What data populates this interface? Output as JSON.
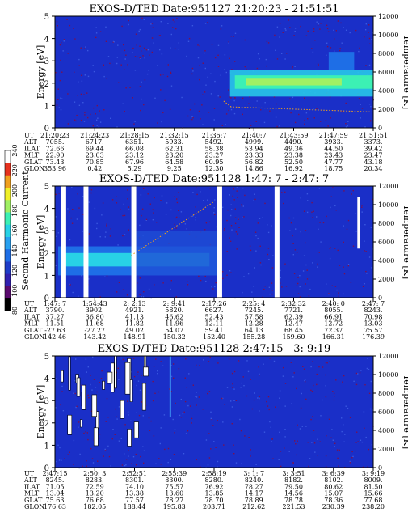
{
  "colorbar": {
    "label": "Second Harmonic Current",
    "ticks": [
      "80",
      "100",
      "120",
      "140",
      "160",
      "180",
      "200",
      "220",
      "240"
    ],
    "colors": [
      "#000000",
      "#5a0a6e",
      "#3020b0",
      "#1e3cc8",
      "#1e6ee6",
      "#28a0f0",
      "#28d2e6",
      "#3cf0b4",
      "#a0f064",
      "#f0f028",
      "#f0a01e",
      "#e6321e",
      "#ffffff"
    ]
  },
  "chart_data": [
    {
      "type": "heatmap",
      "title": "EXOS-D/TED   Date:951127  21:20:23 - 21:51:51",
      "ylabel": "Energy [eV]",
      "y2label": "Temperature [K]",
      "yticks": [
        "0",
        "1",
        "2",
        "3",
        "4",
        "5"
      ],
      "y2ticks": [
        "0",
        "2000",
        "4000",
        "6000",
        "8000",
        "10000",
        "12000"
      ],
      "ylim": [
        0,
        5
      ],
      "y2lim": [
        0,
        12000
      ],
      "rows": [
        {
          "label": "UT",
          "values": [
            "21:20:23",
            "21:24:23",
            "21:28:15",
            "21:32:15",
            "21:36:7",
            "21:40:7",
            "21:43:59",
            "21:47:59",
            "21:51:51"
          ]
        },
        {
          "label": "ALT",
          "values": [
            "7055.",
            "6717.",
            "6351.",
            "5933.",
            "5492.",
            "4999.",
            "4490.",
            "3933.",
            "3373."
          ]
        },
        {
          "label": "ILAT",
          "values": [
            "72.66",
            "69.44",
            "66.08",
            "62.31",
            "58.38",
            "53.94",
            "49.36",
            "44.50",
            "39.42"
          ]
        },
        {
          "label": "MLT",
          "values": [
            "22.90",
            "23.03",
            "23.12",
            "23.20",
            "23.27",
            "23.33",
            "23.38",
            "23.43",
            "23.47"
          ]
        },
        {
          "label": "GLAT",
          "values": [
            "73.43",
            "70.85",
            "67.96",
            "64.58",
            "60.95",
            "56.82",
            "52.50",
            "47.77",
            "43.18"
          ]
        },
        {
          "label": "GLON",
          "values": [
            "353.96",
            "0.42",
            "5.29",
            "9.25",
            "12.30",
            "14.86",
            "16.92",
            "18.75",
            "20.34"
          ]
        }
      ]
    },
    {
      "type": "heatmap",
      "title": "EXOS-D/TED   Date:951128   1:47: 7 - 2:47: 7",
      "ylabel": "Energy [eV]",
      "y2label": "Temperature [K]",
      "yticks": [
        "0",
        "1",
        "2",
        "3",
        "4",
        "5"
      ],
      "y2ticks": [
        "0",
        "2000",
        "4000",
        "6000",
        "8000",
        "10000",
        "12000"
      ],
      "ylim": [
        0,
        5
      ],
      "y2lim": [
        0,
        12000
      ],
      "rows": [
        {
          "label": "UT",
          "values": [
            "1:47: 7",
            "1:54:43",
            "2: 2:13",
            "2: 9:41",
            "2:17:26",
            "2:25: 4",
            "2:32:32",
            "2:40: 0",
            "2:47: 7"
          ]
        },
        {
          "label": "ALT",
          "values": [
            "3790.",
            "3902.",
            "4921.",
            "5820.",
            "6627.",
            "7245.",
            "7721.",
            "8055.",
            "8243."
          ]
        },
        {
          "label": "ILAT",
          "values": [
            "37.27",
            "36.80",
            "41.13",
            "46.62",
            "52.43",
            "57.58",
            "62.39",
            "66.91",
            "70.98"
          ]
        },
        {
          "label": "MLT",
          "values": [
            "11.51",
            "11.68",
            "11.82",
            "11.96",
            "12.11",
            "12.28",
            "12.47",
            "12.72",
            "13.03"
          ]
        },
        {
          "label": "GLAT",
          "values": [
            "-27.63",
            "-27.27",
            "49.02",
            "54.07",
            "59.41",
            "64.13",
            "68.45",
            "72.37",
            "75.57"
          ]
        },
        {
          "label": "GLON",
          "values": [
            "142.46",
            "143.42",
            "148.91",
            "150.32",
            "152.40",
            "155.28",
            "159.60",
            "166.31",
            "176.39"
          ]
        }
      ]
    },
    {
      "type": "heatmap",
      "title": "EXOS-D/TED   Date:951128   2:47:15 - 3: 9:19",
      "ylabel": "Energy [eV]",
      "y2label": "Temperature [K]",
      "yticks": [
        "0",
        "1",
        "2",
        "3",
        "4",
        "5"
      ],
      "y2ticks": [
        "0",
        "2000",
        "4000",
        "6000",
        "8000",
        "10000",
        "12000"
      ],
      "ylim": [
        0,
        5
      ],
      "y2lim": [
        0,
        12000
      ],
      "rows": [
        {
          "label": "UT",
          "values": [
            "2:47:15",
            "2:50: 3",
            "2:52:51",
            "2:55:39",
            "2:58:19",
            "3: 1: 7",
            "3: 3:51",
            "3: 6:39",
            "3: 9:19"
          ]
        },
        {
          "label": "ALT",
          "values": [
            "8245.",
            "8283.",
            "8301.",
            "8300.",
            "8280.",
            "8240.",
            "8182.",
            "8102.",
            "8009."
          ]
        },
        {
          "label": "ILAT",
          "values": [
            "71.05",
            "72.59",
            "74.10",
            "75.57",
            "76.92",
            "78.27",
            "79.50",
            "80.62",
            "81.50"
          ]
        },
        {
          "label": "MLT",
          "values": [
            "13.04",
            "13.20",
            "13.38",
            "13.60",
            "13.85",
            "14.17",
            "14.56",
            "15.07",
            "15.66"
          ]
        },
        {
          "label": "GLAT",
          "values": [
            "75.63",
            "76.68",
            "77.57",
            "78.27",
            "78.70",
            "78.89",
            "78.78",
            "78.36",
            "77.68"
          ]
        },
        {
          "label": "GLON",
          "values": [
            "176.63",
            "182.05",
            "188.44",
            "195.83",
            "203.71",
            "212.62",
            "221.53",
            "230.39",
            "238.20"
          ]
        }
      ]
    }
  ]
}
